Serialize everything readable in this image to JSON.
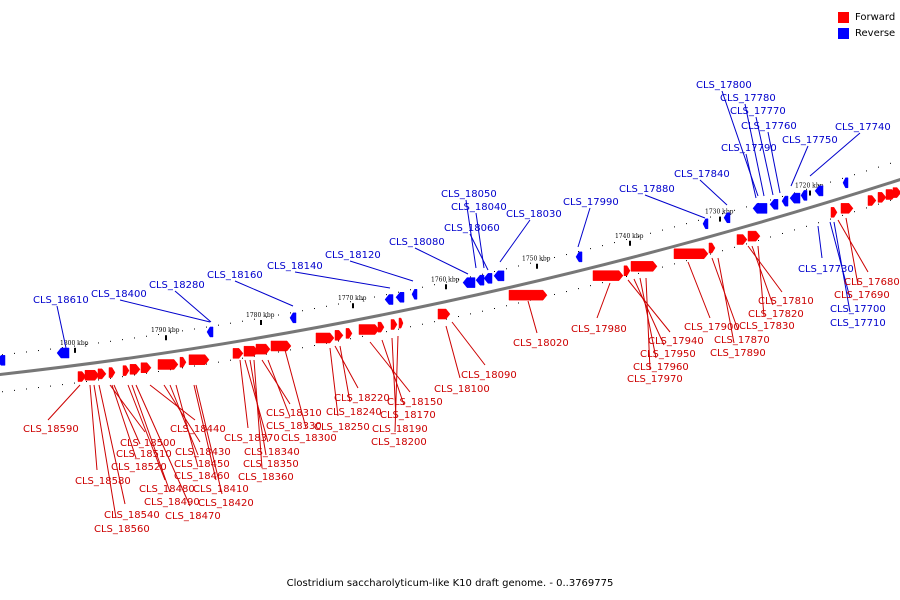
{
  "caption": "Clostridium saccharolyticum-like K10 draft genome. - 0..3769775",
  "legend": {
    "forward_label": "Forward",
    "reverse_label": "Reverse",
    "forward_color": "#ff0000",
    "reverse_color": "#0000ff"
  },
  "colors": {
    "forward_label": "#cc0000",
    "reverse_label": "#0000cc",
    "backbone": "#777777"
  },
  "ticks": [
    "1800 kbp",
    "1790 kbp",
    "1780 kbp",
    "1770 kbp",
    "1760 kbp",
    "1750 kbp",
    "1740 kbp",
    "1730 kbp",
    "1720 kbp"
  ],
  "reverse_genes": [
    "CLS_18610",
    "CLS_18400",
    "CLS_18280",
    "CLS_18160",
    "CLS_18140",
    "CLS_18120",
    "CLS_18080",
    "CLS_18060",
    "CLS_18050",
    "CLS_18040",
    "CLS_18030",
    "CLS_17990",
    "CLS_17880",
    "CLS_17840",
    "CLS_17800",
    "CLS_17780",
    "CLS_17770",
    "CLS_17760",
    "CLS_17790",
    "CLS_17750",
    "CLS_17740",
    "CLS_17730",
    "CLS_17700",
    "CLS_17710"
  ],
  "forward_genes": [
    "CLS_18590",
    "CLS_18580",
    "CLS_18540",
    "CLS_18560",
    "CLS_18500",
    "CLS_18510",
    "CLS_18520",
    "CLS_18490",
    "CLS_18480",
    "CLS_18470",
    "CLS_18440",
    "CLS_18430",
    "CLS_18450",
    "CLS_18460",
    "CLS_18410",
    "CLS_18420",
    "CLS_18370",
    "CLS_18340",
    "CLS_18350",
    "CLS_18360",
    "CLS_18310",
    "CLS_18330",
    "CLS_18300",
    "CLS_18220",
    "CLS_18240",
    "CLS_18250",
    "CLS_18150",
    "CLS_18170",
    "CLS_18190",
    "CLS_18200",
    "CLS_18090",
    "CLS_18100",
    "CLS_18020",
    "CLS_17980",
    "CLS_17940",
    "CLS_17950",
    "CLS_17960",
    "CLS_17970",
    "CLS_17900",
    "CLS_17870",
    "CLS_17890",
    "CLS_17810",
    "CLS_17820",
    "CLS_17830",
    "CLS_17680",
    "CLS_17690"
  ]
}
